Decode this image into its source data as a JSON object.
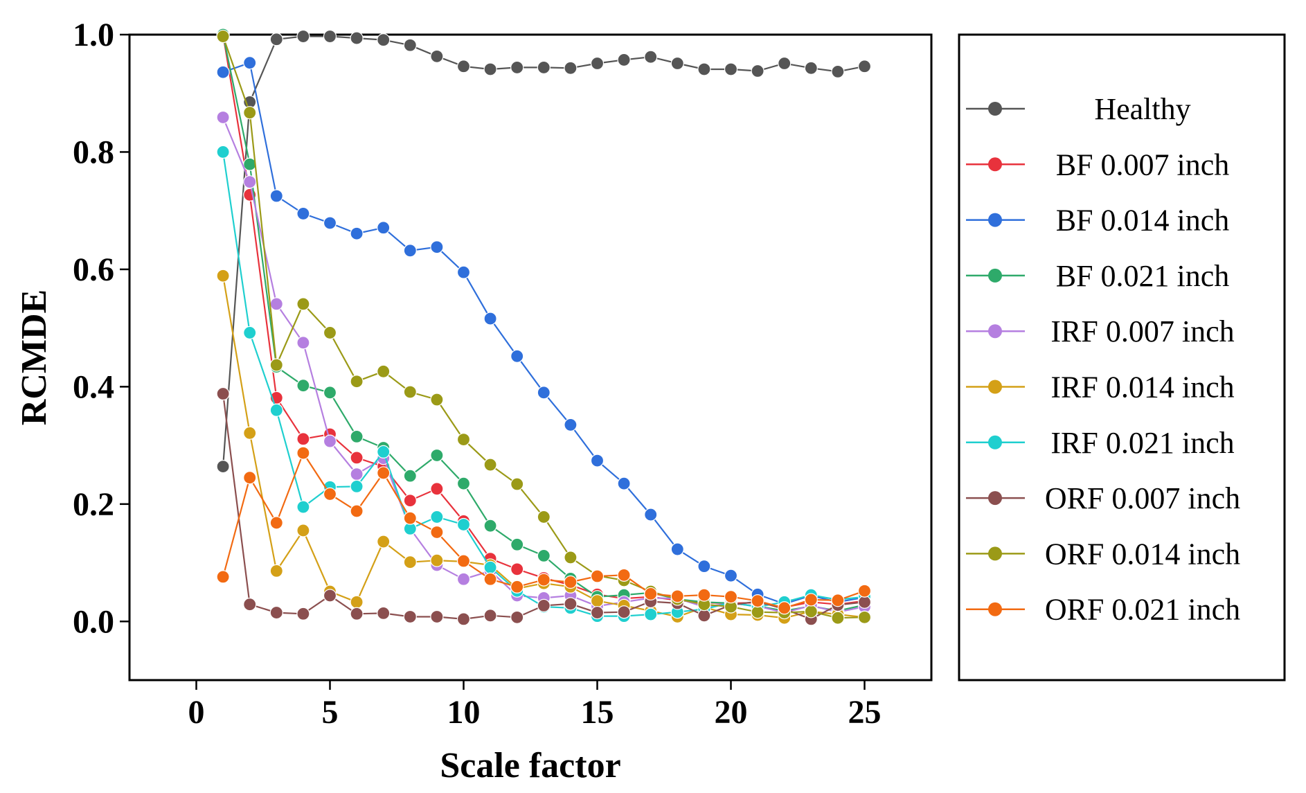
{
  "chart_data": {
    "type": "line",
    "xlabel": "Scale factor",
    "ylabel": "RCMDE",
    "xlim": [
      -2.5,
      27.5
    ],
    "ylim": [
      -0.1,
      1.0
    ],
    "xticks": [
      0,
      5,
      10,
      15,
      20,
      25
    ],
    "xtick_labels": [
      "0",
      "5",
      "10",
      "15",
      "20",
      "25"
    ],
    "yticks": [
      0.0,
      0.2,
      0.4,
      0.6,
      0.8,
      1.0
    ],
    "ytick_labels": [
      "0.0",
      "0.2",
      "0.4",
      "0.6",
      "0.8",
      "1.0"
    ],
    "grid": false,
    "legend_position": "right (outside plot)",
    "x": [
      1,
      2,
      3,
      4,
      5,
      6,
      7,
      8,
      9,
      10,
      11,
      12,
      13,
      14,
      15,
      16,
      17,
      18,
      19,
      20,
      21,
      22,
      23,
      24,
      25
    ],
    "series": [
      {
        "name": "Healthy",
        "color": "#555555",
        "values": [
          0.264,
          0.885,
          0.992,
          0.997,
          0.997,
          0.994,
          0.991,
          0.982,
          0.963,
          0.946,
          0.941,
          0.944,
          0.944,
          0.943,
          0.951,
          0.957,
          0.962,
          0.951,
          0.941,
          0.941,
          0.938,
          0.951,
          0.943,
          0.937,
          0.946
        ]
      },
      {
        "name": "BF 0.007 inch",
        "color": "#e8323c",
        "values": [
          1.0,
          0.727,
          0.381,
          0.311,
          0.319,
          0.279,
          0.264,
          0.206,
          0.226,
          0.171,
          0.107,
          0.089,
          0.074,
          0.062,
          0.046,
          0.039,
          0.042,
          0.036,
          0.032,
          0.031,
          0.032,
          0.024,
          0.033,
          0.029,
          0.035
        ]
      },
      {
        "name": "BF 0.014 inch",
        "color": "#2f6fdb",
        "values": [
          0.936,
          0.952,
          0.725,
          0.695,
          0.679,
          0.661,
          0.671,
          0.632,
          0.638,
          0.595,
          0.516,
          0.452,
          0.39,
          0.335,
          0.274,
          0.235,
          0.182,
          0.123,
          0.094,
          0.078,
          0.046,
          0.03,
          0.044,
          0.033,
          0.041
        ]
      },
      {
        "name": "BF 0.021 inch",
        "color": "#2eaa6a",
        "values": [
          1.0,
          0.779,
          0.434,
          0.402,
          0.39,
          0.315,
          0.296,
          0.248,
          0.283,
          0.235,
          0.163,
          0.131,
          0.112,
          0.073,
          0.042,
          0.045,
          0.049,
          0.038,
          0.033,
          0.031,
          0.026,
          0.018,
          0.026,
          0.018,
          0.028
        ]
      },
      {
        "name": "IRF 0.007 inch",
        "color": "#b57fe0",
        "values": [
          0.859,
          0.749,
          0.541,
          0.475,
          0.307,
          0.251,
          0.278,
          0.158,
          0.096,
          0.072,
          0.086,
          0.044,
          0.04,
          0.044,
          0.026,
          0.033,
          0.04,
          0.039,
          0.025,
          0.031,
          0.026,
          0.015,
          0.027,
          0.016,
          0.025
        ]
      },
      {
        "name": "IRF 0.014 inch",
        "color": "#d4a017",
        "values": [
          0.589,
          0.321,
          0.086,
          0.155,
          0.051,
          0.033,
          0.136,
          0.101,
          0.104,
          0.102,
          0.096,
          0.056,
          0.065,
          0.059,
          0.035,
          0.027,
          0.018,
          0.008,
          0.024,
          0.012,
          0.011,
          0.006,
          0.017,
          0.012,
          0.007
        ]
      },
      {
        "name": "IRF 0.021 inch",
        "color": "#1fcfcf",
        "values": [
          0.8,
          0.492,
          0.36,
          0.195,
          0.229,
          0.23,
          0.289,
          0.158,
          0.178,
          0.165,
          0.092,
          0.052,
          0.025,
          0.023,
          0.009,
          0.009,
          0.012,
          0.016,
          0.021,
          0.032,
          0.025,
          0.033,
          0.045,
          0.037,
          0.042
        ]
      },
      {
        "name": "ORF 0.007 inch",
        "color": "#8b4f4f",
        "values": [
          0.388,
          0.029,
          0.015,
          0.013,
          0.044,
          0.013,
          0.014,
          0.008,
          0.008,
          0.004,
          0.01,
          0.007,
          0.027,
          0.03,
          0.015,
          0.016,
          0.034,
          0.031,
          0.01,
          0.028,
          0.034,
          0.021,
          0.004,
          0.028,
          0.033
        ]
      },
      {
        "name": "ORF 0.014 inch",
        "color": "#9b9a17",
        "values": [
          0.997,
          0.867,
          0.437,
          0.541,
          0.492,
          0.409,
          0.426,
          0.391,
          0.378,
          0.31,
          0.267,
          0.234,
          0.178,
          0.109,
          0.078,
          0.07,
          0.051,
          0.038,
          0.029,
          0.025,
          0.016,
          0.015,
          0.017,
          0.006,
          0.007
        ]
      },
      {
        "name": "ORF 0.021 inch",
        "color": "#f26a12",
        "values": [
          0.076,
          0.245,
          0.168,
          0.287,
          0.217,
          0.188,
          0.253,
          0.176,
          0.152,
          0.103,
          0.072,
          0.059,
          0.071,
          0.067,
          0.077,
          0.079,
          0.047,
          0.043,
          0.045,
          0.042,
          0.035,
          0.023,
          0.037,
          0.036,
          0.052
        ]
      }
    ]
  }
}
